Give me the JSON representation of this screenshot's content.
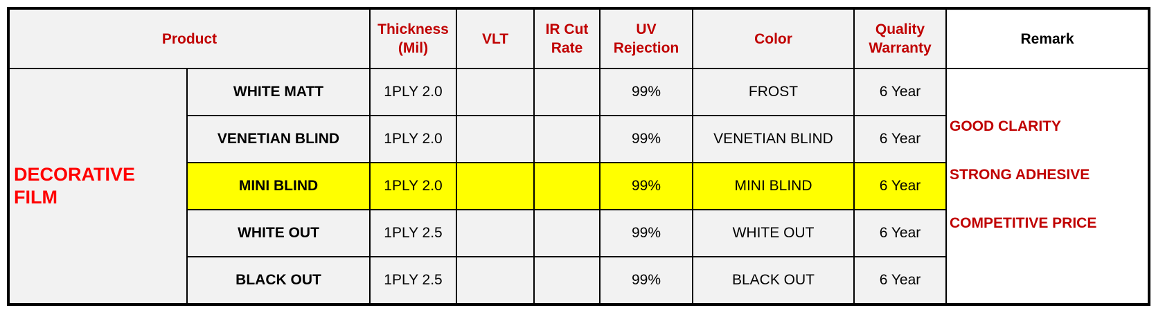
{
  "table": {
    "header": [
      "Product",
      "Thickness (Mil)",
      "VLT",
      "IR Cut Rate",
      "UV Rejection",
      "Color",
      "Quality Warranty",
      "Remark"
    ],
    "group": "DECORATIVE FILM",
    "rows": [
      {
        "product": "WHITE MATT",
        "thickness": "1PLY 2.0",
        "uv": "99%",
        "color": "FROST",
        "warranty": "6 Year"
      },
      {
        "product": "VENETIAN BLIND",
        "thickness": "1PLY 2.0",
        "uv": "99%",
        "color": "VENETIAN BLIND",
        "warranty": "6 Year"
      },
      {
        "product": "MINI BLIND",
        "thickness": "1PLY 2.0",
        "uv": "99%",
        "color": "MINI BLIND",
        "warranty": "6 Year",
        "background": "#ffff00"
      },
      {
        "product": "WHITE OUT",
        "thickness": "1PLY 2.5",
        "uv": "99%",
        "color": "WHITE OUT",
        "warranty": "6 Year"
      },
      {
        "product": "BLACK OUT",
        "thickness": "1PLY 2.5",
        "uv": "99%",
        "color": "BLACK OUT",
        "warranty": "6 Year"
      }
    ],
    "remarks": [
      "GOOD CLARITY",
      "STRONG ADHESIVE",
      "COMPETITIVE PRICE"
    ]
  }
}
